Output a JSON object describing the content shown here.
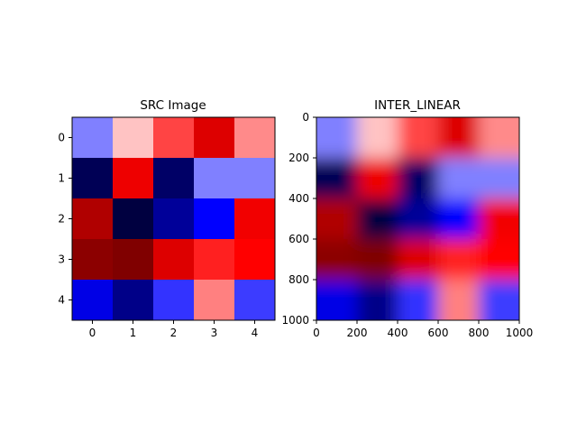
{
  "chart_data": [
    {
      "type": "heatmap",
      "title": "SRC Image",
      "xlabel": "",
      "ylabel": "",
      "x_ticks": [
        "0",
        "1",
        "2",
        "3",
        "4"
      ],
      "y_ticks": [
        "0",
        "1",
        "2",
        "3",
        "4"
      ],
      "xlim": [
        -0.5,
        4.5
      ],
      "ylim": [
        4.5,
        -0.5
      ],
      "colormap": "seismic",
      "grid": false,
      "cells": [
        [
          "#8080ff",
          "#ffc3c3",
          "#ff4444",
          "#dd0000",
          "#ff8a8a"
        ],
        [
          "#000055",
          "#ee0000",
          "#000066",
          "#8080ff",
          "#8080ff"
        ],
        [
          "#b00000",
          "#000040",
          "#000099",
          "#0000ff",
          "#f20000"
        ],
        [
          "#8c0000",
          "#800000",
          "#dd0000",
          "#ff2020",
          "#ff0000"
        ],
        [
          "#0000e6",
          "#000088",
          "#3333ff",
          "#ff8080",
          "#3c3cff"
        ]
      ]
    },
    {
      "type": "heatmap",
      "title": "INTER_LINEAR",
      "xlabel": "",
      "ylabel": "",
      "x_ticks": [
        "0",
        "200",
        "400",
        "600",
        "800",
        "1000"
      ],
      "y_ticks": [
        "0",
        "200",
        "400",
        "600",
        "800",
        "1000"
      ],
      "xlim": [
        0,
        1000
      ],
      "ylim": [
        1000,
        0
      ],
      "colormap": "seismic",
      "grid": false,
      "interpolation": "linear"
    }
  ]
}
